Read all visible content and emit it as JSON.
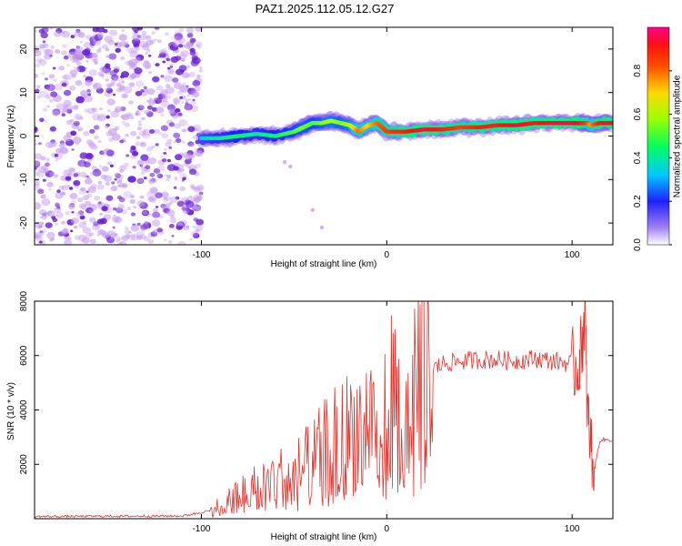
{
  "title": "PAZ1.2025.112.05.12.G27",
  "colors": {
    "snr_line": "#e8302a",
    "spec_low": "#c79ef0",
    "spec_mid": "#6a1fd6"
  },
  "chart_data": [
    {
      "type": "heatmap",
      "xlabel": "Height of straight line (km)",
      "ylabel": "Frequency (Hz)",
      "xlim": [
        -190,
        122
      ],
      "ylim": [
        -25,
        25
      ],
      "xticks": [
        "-100",
        "0",
        "100"
      ],
      "yticks": [
        "-20",
        "-10",
        "0",
        "10",
        "20"
      ],
      "colorbar": {
        "label": "Normalized spectral amplitude",
        "range": [
          0,
          1
        ],
        "ticks": [
          "0.0",
          "0.2",
          "0.4",
          "0.6",
          "0.8"
        ]
      },
      "noise_region": [
        -190,
        -100
      ],
      "ridge": {
        "x": [
          -100,
          -90,
          -80,
          -70,
          -60,
          -50,
          -45,
          -40,
          -35,
          -30,
          -25,
          -20,
          -15,
          -10,
          -5,
          0,
          10,
          20,
          30,
          40,
          50,
          60,
          70,
          80,
          90,
          100,
          105,
          108,
          110,
          115,
          122
        ],
        "freq": [
          -0.5,
          -0.5,
          0,
          0.5,
          0,
          1,
          2,
          3,
          3,
          3.5,
          3,
          2.5,
          1,
          2.5,
          3,
          1,
          1,
          1.5,
          1.5,
          2,
          2,
          2.5,
          2.5,
          3,
          3,
          3,
          3,
          3,
          2.5,
          3,
          3
        ],
        "amplitude": [
          0.35,
          0.4,
          0.45,
          0.4,
          0.45,
          0.5,
          0.55,
          0.5,
          0.55,
          0.6,
          0.55,
          0.6,
          0.8,
          0.7,
          0.8,
          0.85,
          0.9,
          0.95,
          0.9,
          0.85,
          0.9,
          0.9,
          0.95,
          0.9,
          0.95,
          0.95,
          0.9,
          0.85,
          0.75,
          0.9,
          0.95
        ]
      }
    },
    {
      "type": "line",
      "xlabel": "Height of straight line (km)",
      "ylabel": "SNR (10 * v/v)",
      "xlim": [
        -190,
        122
      ],
      "ylim": [
        0,
        8000
      ],
      "xticks": [
        "-100",
        "0",
        "100"
      ],
      "yticks": [
        "2000",
        "4000",
        "6000",
        "8000"
      ],
      "series": [
        {
          "x": [
            -190,
            -150,
            -110,
            -95,
            -85,
            -80,
            -70,
            -60,
            -50,
            -40,
            -30,
            -20,
            -10,
            0,
            10,
            20,
            30,
            40,
            50,
            60,
            70,
            80,
            90,
            100,
            103,
            105,
            107,
            108,
            110,
            112,
            115,
            122
          ],
          "y": [
            80,
            90,
            100,
            300,
            700,
            900,
            1200,
            1500,
            1700,
            2100,
            2800,
            3200,
            3600,
            4200,
            4700,
            5300,
            5700,
            5800,
            5850,
            5850,
            5800,
            5900,
            5800,
            5700,
            5600,
            6200,
            7800,
            4000,
            2800,
            1800,
            2900,
            2900
          ]
        }
      ]
    }
  ]
}
